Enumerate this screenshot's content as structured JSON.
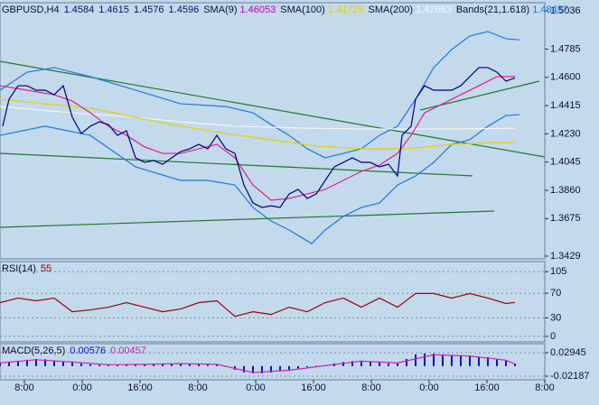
{
  "chart_data": [
    {
      "type": "line",
      "title": "GBPUSD,H4",
      "ohlc": [
        1.4584,
        1.4615,
        1.4576,
        1.4596
      ],
      "indicators": [
        {
          "label": "SMA(9)",
          "value": 1.46053,
          "color": "#c000c0"
        },
        {
          "label": "SMA(100)",
          "value": 1.41729,
          "color": "#e8d000"
        },
        {
          "label": "SMA(200)",
          "value": 1.42663,
          "color": "#ffffff"
        },
        {
          "label": "Bands(21,1.618)",
          "value": 1.48457,
          "color": "#1e78e6"
        }
      ],
      "xlim": [
        -19,
        584
      ],
      "ylim": [
        1.3411,
        1.5089
      ],
      "yticks": [
        1.5036,
        1.4785,
        {
          "value": 1.46,
          "label": "1.4600"
        },
        1.4415,
        {
          "value": 1.423,
          "label": "1.4230"
        },
        1.4045,
        {
          "value": 1.386,
          "label": "1.3860"
        },
        1.3675,
        1.3429
      ],
      "series": [
        {
          "color": "#1e78e6",
          "x": [
            -19,
            11,
            41,
            81,
            131,
            181,
            231,
            261,
            281,
            301,
            321,
            341,
            361,
            381,
            401,
            421,
            441,
            461,
            481,
            501,
            521,
            541,
            556
          ],
          "values": [
            1.4516,
            1.4634,
            1.4664,
            1.4605,
            1.4516,
            1.4427,
            1.4409,
            1.4368,
            1.4291,
            1.422,
            1.4132,
            1.4073,
            1.4102,
            1.4132,
            1.422,
            1.428,
            1.4457,
            1.4664,
            1.4782,
            1.4871,
            1.49,
            1.4853,
            1.48457
          ]
        },
        {
          "color": "#1e78e6",
          "x": [
            -19,
            31,
            81,
            131,
            181,
            211,
            241,
            261,
            281,
            301,
            326,
            341,
            361,
            381,
            401,
            421,
            441,
            461,
            481,
            501,
            521,
            541,
            556
          ],
          "values": [
            1.422,
            1.428,
            1.422,
            1.4014,
            1.3925,
            1.3925,
            1.3895,
            1.3748,
            1.3659,
            1.36,
            1.3511,
            1.36,
            1.3689,
            1.3748,
            1.3777,
            1.3895,
            1.3954,
            1.4043,
            1.4161,
            1.4191,
            1.428,
            1.435,
            1.4356
          ]
        },
        {
          "name": "SMA(200)",
          "color": "#f4f4f4",
          "x": [
            -19,
            61,
            131,
            181,
            241,
            311,
            381,
            431,
            481,
            551
          ],
          "values": [
            1.4409,
            1.4368,
            1.4339,
            1.4309,
            1.428,
            1.4268,
            1.4262,
            1.4262,
            1.4262,
            1.42663
          ]
        },
        {
          "name": "SMA(100)",
          "color": "#e8d000",
          "x": [
            -19,
            31,
            81,
            131,
            181,
            231,
            281,
            331,
            381,
            431,
            481,
            531,
            551
          ],
          "values": [
            1.4457,
            1.4427,
            1.4398,
            1.4339,
            1.428,
            1.4232,
            1.4191,
            1.415,
            1.4132,
            1.4132,
            1.4161,
            1.4173,
            1.41729
          ]
        },
        {
          "name": "SMA(9)",
          "color": "#e0208a",
          "x": [
            -19,
            11,
            41,
            61,
            81,
            101,
            121,
            141,
            161,
            181,
            201,
            221,
            241,
            261,
            281,
            301,
            321,
            341,
            361,
            381,
            401,
            421,
            436,
            451,
            471,
            491,
            511,
            531,
            551
          ],
          "values": [
            1.4545,
            1.4516,
            1.4486,
            1.4445,
            1.4368,
            1.428,
            1.422,
            1.4144,
            1.4102,
            1.4102,
            1.4132,
            1.4161,
            1.4073,
            1.3895,
            1.3795,
            1.3807,
            1.3836,
            1.3866,
            1.3925,
            1.3984,
            1.4025,
            1.4102,
            1.422,
            1.4368,
            1.4427,
            1.4486,
            1.4545,
            1.4605,
            1.46053
          ]
        },
        {
          "color": "#00007a",
          "x": [
            -16,
            -9,
            1,
            11,
            21,
            31,
            41,
            51,
            61,
            71,
            81,
            91,
            101,
            111,
            121,
            131,
            141,
            151,
            161,
            171,
            181,
            191,
            201,
            211,
            221,
            231,
            241,
            251,
            261,
            271,
            281,
            291,
            301,
            311,
            321,
            331,
            341,
            351,
            361,
            371,
            381,
            391,
            401,
            411,
            421,
            426,
            436,
            441,
            451,
            461,
            471,
            481,
            491,
            501,
            511,
            521,
            531,
            541,
            551
          ],
          "values": [
            1.428,
            1.4457,
            1.4545,
            1.4545,
            1.4516,
            1.4516,
            1.4486,
            1.4545,
            1.4339,
            1.4232,
            1.428,
            1.4309,
            1.4291,
            1.422,
            1.425,
            1.4073,
            1.4043,
            1.4055,
            1.4031,
            1.4073,
            1.4114,
            1.4132,
            1.4161,
            1.4132,
            1.422,
            1.4132,
            1.4102,
            1.3895,
            1.3777,
            1.3748,
            1.3759,
            1.3748,
            1.3836,
            1.3866,
            1.3807,
            1.3836,
            1.3925,
            1.4014,
            1.4043,
            1.4073,
            1.4043,
            1.4043,
            1.4014,
            1.4031,
            1.3954,
            1.422,
            1.428,
            1.4457,
            1.4545,
            1.4516,
            1.4516,
            1.4516,
            1.4545,
            1.4605,
            1.4664,
            1.4664,
            1.4634,
            1.4575,
            1.4596
          ]
        }
      ]
    },
    {
      "type": "line",
      "title": "RSI(14)",
      "last": 55,
      "xlim": [
        -19,
        584
      ],
      "ylim": [
        -8.9,
        121.3
      ],
      "yticks": [
        105,
        70,
        30,
        0
      ],
      "series": [
        {
          "color": "#a00000",
          "x": [
            -19,
            1,
            21,
            41,
            61,
            81,
            101,
            121,
            141,
            161,
            181,
            201,
            221,
            241,
            261,
            281,
            301,
            321,
            341,
            361,
            381,
            401,
            421,
            441,
            461,
            481,
            501,
            521,
            541,
            551
          ],
          "values": [
            54.7,
            62.1,
            57.7,
            62.1,
            39.9,
            42.9,
            47.3,
            54.7,
            47.3,
            39.9,
            44.4,
            54.7,
            57.7,
            32.5,
            39.9,
            35.5,
            47.3,
            39.9,
            54.7,
            62.1,
            47.3,
            62.1,
            47.3,
            69.5,
            69.5,
            62.1,
            69.5,
            62.1,
            53.3,
            55
          ]
        }
      ]
    },
    {
      "type": "bar",
      "title": "MACD(5,26,5)",
      "last": [
        0.00576,
        0.00457
      ],
      "xlim": [
        -19,
        584
      ],
      "ylim": [
        -0.0298,
        0.0492
      ],
      "yticks": [
        0.02945,
        -0.02187
      ],
      "xticks": [
        {
          "value": 8,
          "label": "8:00"
        },
        {
          "value": 72,
          "label": "0:00"
        },
        {
          "value": 136,
          "label": "16:00"
        },
        {
          "value": 200,
          "label": "8:00"
        },
        {
          "value": 264,
          "label": "0:00"
        },
        {
          "value": 328,
          "label": "16:00"
        },
        {
          "value": 392,
          "label": "8:00"
        },
        {
          "value": 456,
          "label": "0:00"
        },
        {
          "value": 520,
          "label": "16:00"
        },
        {
          "value": 584,
          "label": "8:00"
        }
      ],
      "series": [
        {
          "type": "bar",
          "color": "#1010c8",
          "x": [
            -19,
            -9,
            1,
            11,
            21,
            31,
            41,
            51,
            61,
            71,
            81,
            91,
            101,
            111,
            121,
            131,
            141,
            151,
            161,
            171,
            181,
            191,
            201,
            211,
            221,
            231,
            241,
            251,
            261,
            271,
            281,
            291,
            301,
            311,
            321,
            331,
            341,
            351,
            361,
            371,
            381,
            391,
            401,
            411,
            421,
            431,
            441,
            451,
            461,
            471,
            481,
            491,
            501,
            511,
            521,
            531,
            541,
            551
          ],
          "values": [
            0.0079,
            0.0098,
            0.0118,
            0.0138,
            0.0158,
            0.0148,
            0.0128,
            0.0108,
            0.0079,
            0.0059,
            0.0039,
            0.003,
            0.002,
            0.003,
            0.0039,
            0.0039,
            0.0039,
            0.0049,
            0.0059,
            0.0059,
            0.0059,
            0.0049,
            0.0039,
            0.0039,
            0.0039,
            -0.002,
            -0.0079,
            -0.0138,
            -0.0158,
            -0.0158,
            -0.0138,
            -0.0108,
            -0.0079,
            -0.0049,
            -0.002,
            0.001,
            0.002,
            0.0059,
            0.0089,
            0.0108,
            0.0118,
            0.0098,
            0.0079,
            0.0059,
            0.0059,
            0.0158,
            0.0257,
            0.0276,
            0.0276,
            0.0257,
            0.0237,
            0.0227,
            0.0217,
            0.0207,
            0.0197,
            0.0158,
            0.0118,
            0.00576
          ]
        },
        {
          "type": "line",
          "color": "#d020c0",
          "x": [
            -19,
            21,
            61,
            101,
            141,
            181,
            221,
            261,
            301,
            341,
            381,
            421,
            461,
            501,
            541,
            551
          ],
          "values": [
            0.007,
            0.014,
            0.009,
            0.003,
            0.004,
            0.0055,
            0.004,
            -0.014,
            -0.009,
            0.001,
            0.011,
            0.007,
            0.025,
            0.022,
            0.013,
            0.00457
          ]
        }
      ]
    }
  ]
}
